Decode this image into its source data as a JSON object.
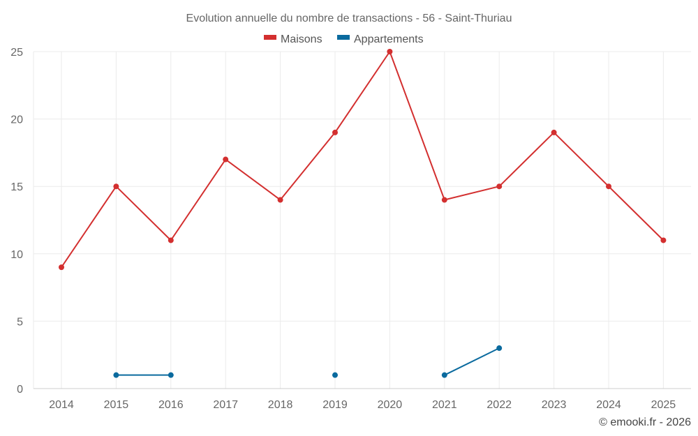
{
  "chart_data": {
    "type": "line",
    "title": "Evolution annuelle du nombre de transactions - 56 - Saint-Thuriau",
    "categories": [
      "2014",
      "2015",
      "2016",
      "2017",
      "2018",
      "2019",
      "2020",
      "2021",
      "2022",
      "2023",
      "2024",
      "2025"
    ],
    "ylim": [
      0,
      25
    ],
    "yticks": [
      0,
      5,
      10,
      15,
      20,
      25
    ],
    "grid": true,
    "legend_position": "top-center",
    "series": [
      {
        "name": "Maisons",
        "color": "#d32f2f",
        "values": [
          9,
          15,
          11,
          17,
          14,
          19,
          25,
          14,
          15,
          19,
          15,
          11
        ]
      },
      {
        "name": "Appartements",
        "color": "#0a6a9e",
        "values": [
          null,
          1,
          1,
          null,
          null,
          1,
          null,
          1,
          3,
          null,
          null,
          null
        ]
      }
    ],
    "credit": "© emooki.fr - 2026"
  }
}
